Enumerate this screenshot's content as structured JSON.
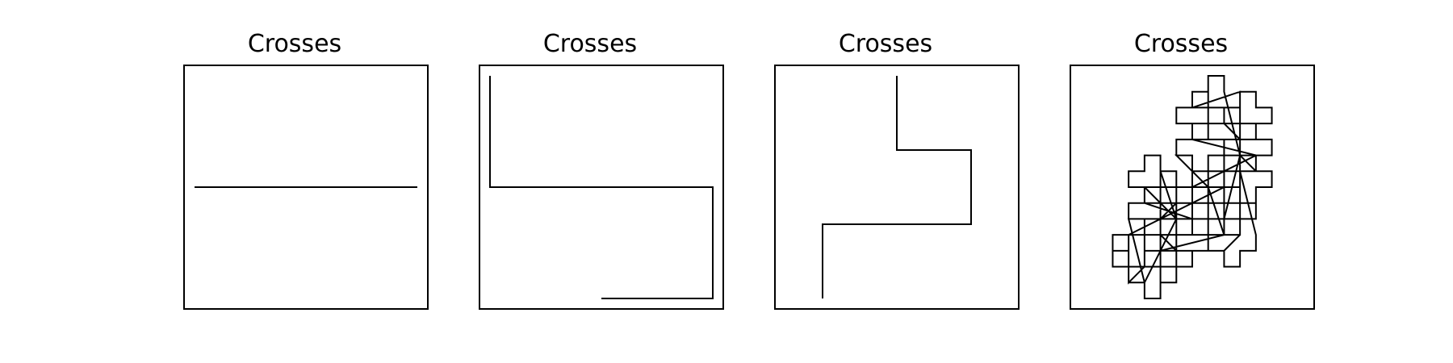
{
  "panels": [
    {
      "title": "Crosses",
      "curve": {
        "iteration": 0,
        "points": [
          [
            -1,
            0
          ],
          [
            1,
            0
          ]
        ]
      }
    },
    {
      "title": "Crosses",
      "curve": {
        "iteration": 1,
        "points": [
          [
            -1,
            -1
          ],
          [
            -1,
            0
          ],
          [
            1,
            0
          ],
          [
            1,
            1
          ],
          [
            0,
            1
          ]
        ]
      }
    },
    {
      "title": "Crosses",
      "curve": {
        "iteration": 2,
        "points": [
          [
            0,
            -1
          ],
          [
            0,
            0
          ],
          [
            1,
            0
          ],
          [
            1,
            1
          ],
          [
            -1,
            1
          ],
          [
            -1,
            2
          ]
        ]
      }
    },
    {
      "title": "Crosses",
      "curve": {
        "iteration": 4,
        "points": []
      }
    }
  ],
  "style": {
    "line_color": "#000000",
    "background": "#ffffff"
  }
}
